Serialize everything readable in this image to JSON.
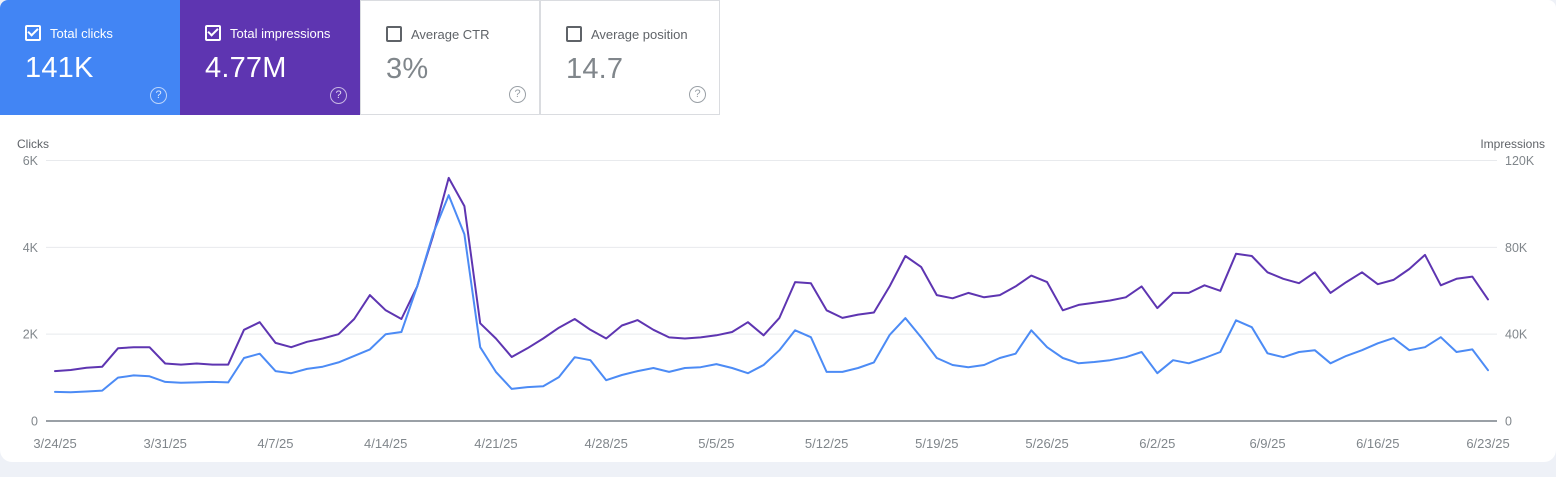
{
  "cards": [
    {
      "label": "Total clicks",
      "value": "141K",
      "checked": true,
      "selected": true,
      "bg": "#4285f4",
      "help_icon": "?"
    },
    {
      "label": "Total impressions",
      "value": "4.77M",
      "checked": true,
      "selected": true,
      "bg": "#5e35b1",
      "help_icon": "?"
    },
    {
      "label": "Average CTR",
      "value": "3%",
      "checked": false,
      "selected": false,
      "bg": "#ffffff",
      "help_icon": "?"
    },
    {
      "label": "Average position",
      "value": "14.7",
      "checked": false,
      "selected": false,
      "bg": "#ffffff",
      "help_icon": "?"
    }
  ],
  "colors": {
    "clicks_accent": "#4285f4",
    "impressions_accent": "#5e35b1",
    "clicks_line": "#4c8bf5",
    "impressions_line": "#5e35b1",
    "gridline": "#e8eaed",
    "baseline": "#9aa0a6",
    "tick_text": "#80868b",
    "axis_title_text": "#5f6368"
  },
  "chart_data": {
    "type": "line",
    "frequency": "daily",
    "x_start": "3/24/25",
    "x_end": "6/23/25",
    "grid": true,
    "legend_position": "none",
    "left_axis": {
      "title": "Clicks",
      "ticks": [
        "6K",
        "4K",
        "2K",
        "0"
      ],
      "range": [
        0,
        6000
      ]
    },
    "right_axis": {
      "title": "Impressions",
      "ticks": [
        "120K",
        "80K",
        "40K",
        "0"
      ],
      "range": [
        0,
        120000
      ]
    },
    "x_tick_labels": [
      "3/24/25",
      "3/31/25",
      "4/7/25",
      "4/14/25",
      "4/21/25",
      "4/28/25",
      "5/5/25",
      "5/12/25",
      "5/19/25",
      "5/26/25",
      "6/2/25",
      "6/9/25",
      "6/16/25",
      "6/23/25"
    ],
    "series": [
      {
        "name": "Total impressions",
        "axis": "right",
        "color": "#5e35b1",
        "values": [
          23000,
          23500,
          24500,
          25000,
          33500,
          34000,
          34000,
          26500,
          26000,
          26500,
          26000,
          26000,
          42000,
          45500,
          36000,
          34000,
          36500,
          38000,
          40000,
          47000,
          58000,
          51000,
          47000,
          62000,
          85000,
          112000,
          99000,
          45000,
          38000,
          29500,
          33500,
          38000,
          43000,
          47000,
          42000,
          38000,
          44000,
          46500,
          42000,
          38500,
          38000,
          38500,
          39500,
          41000,
          45500,
          39500,
          47500,
          64000,
          63500,
          51000,
          47500,
          49000,
          50000,
          62000,
          76000,
          71000,
          58000,
          56500,
          59000,
          57000,
          58000,
          62000,
          67000,
          64000,
          51000,
          53500,
          54500,
          55500,
          57000,
          62000,
          52000,
          59000,
          59000,
          62500,
          60000,
          77000,
          76000,
          68500,
          65500,
          63500,
          68500,
          59000,
          64000,
          68500,
          63000,
          65000,
          70000,
          76500,
          62500,
          65500,
          66500,
          56000
        ]
      },
      {
        "name": "Total clicks",
        "axis": "left",
        "color": "#4c8bf5",
        "values": [
          670,
          660,
          680,
          700,
          1000,
          1050,
          1030,
          900,
          880,
          890,
          900,
          890,
          1450,
          1550,
          1150,
          1100,
          1200,
          1250,
          1350,
          1500,
          1650,
          2000,
          2050,
          3100,
          4300,
          5200,
          4300,
          1700,
          1130,
          740,
          780,
          800,
          1010,
          1470,
          1400,
          940,
          1060,
          1150,
          1220,
          1130,
          1220,
          1240,
          1310,
          1220,
          1100,
          1290,
          1630,
          2090,
          1930,
          1130,
          1130,
          1220,
          1350,
          1980,
          2370,
          1930,
          1450,
          1290,
          1240,
          1290,
          1450,
          1550,
          2090,
          1700,
          1450,
          1330,
          1360,
          1400,
          1470,
          1590,
          1100,
          1400,
          1330,
          1450,
          1590,
          2320,
          2160,
          1560,
          1470,
          1590,
          1630,
          1330,
          1500,
          1630,
          1790,
          1910,
          1630,
          1700,
          1930,
          1590,
          1650,
          1170
        ]
      }
    ]
  }
}
